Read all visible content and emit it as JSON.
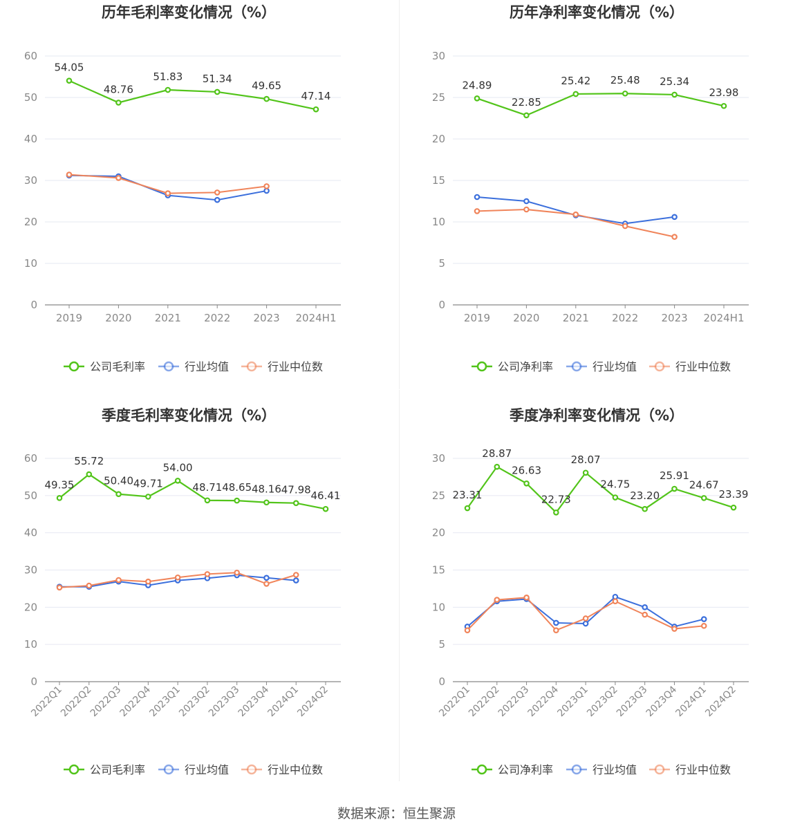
{
  "source_text": "数据来源：恒生聚源",
  "colors": {
    "company": "#52c41a",
    "industry_avg": "#3b6fdc",
    "industry_median": "#f0845a",
    "grid": "#e6e8f2",
    "axis": "#888888",
    "tick_text": "#888888",
    "title": "#333333",
    "label": "#333333"
  },
  "chart_data": [
    {
      "type": "line",
      "title": "历年毛利率变化情况（%）",
      "categories": [
        "2019",
        "2020",
        "2021",
        "2022",
        "2023",
        "2024H1"
      ],
      "ylim": [
        0,
        60
      ],
      "yticks": [
        0,
        10,
        20,
        30,
        40,
        50,
        60
      ],
      "grid": true,
      "legend_position": "bottom",
      "series": [
        {
          "name": "公司毛利率",
          "role": "company",
          "values": [
            54.05,
            48.76,
            51.83,
            51.34,
            49.65,
            47.14
          ],
          "labels": [
            "54.05",
            "48.76",
            "51.83",
            "51.34",
            "49.65",
            "47.14"
          ]
        },
        {
          "name": "行业均值",
          "role": "industry_avg",
          "values": [
            31.2,
            31.0,
            26.4,
            25.3,
            27.5,
            null
          ]
        },
        {
          "name": "行业中位数",
          "role": "industry_median",
          "values": [
            31.4,
            30.6,
            26.9,
            27.1,
            28.6,
            null
          ]
        }
      ]
    },
    {
      "type": "line",
      "title": "历年净利率变化情况（%）",
      "categories": [
        "2019",
        "2020",
        "2021",
        "2022",
        "2023",
        "2024H1"
      ],
      "ylim": [
        0,
        30
      ],
      "yticks": [
        0,
        5,
        10,
        15,
        20,
        25,
        30
      ],
      "grid": true,
      "legend_position": "bottom",
      "series": [
        {
          "name": "公司净利率",
          "role": "company",
          "values": [
            24.89,
            22.85,
            25.42,
            25.48,
            25.34,
            23.98
          ],
          "labels": [
            "24.89",
            "22.85",
            "25.42",
            "25.48",
            "25.34",
            "23.98"
          ]
        },
        {
          "name": "行业均值",
          "role": "industry_avg",
          "values": [
            13.0,
            12.5,
            10.8,
            9.8,
            10.6,
            null
          ]
        },
        {
          "name": "行业中位数",
          "role": "industry_median",
          "values": [
            11.3,
            11.5,
            10.9,
            9.5,
            8.2,
            null
          ]
        }
      ]
    },
    {
      "type": "line",
      "title": "季度毛利率变化情况（%）",
      "categories": [
        "2022Q1",
        "2022Q2",
        "2022Q3",
        "2022Q4",
        "2023Q1",
        "2023Q2",
        "2023Q3",
        "2023Q4",
        "2024Q1",
        "2024Q2"
      ],
      "ylim": [
        0,
        60
      ],
      "yticks": [
        0,
        10,
        20,
        30,
        40,
        50,
        60
      ],
      "grid": true,
      "legend_position": "bottom",
      "series": [
        {
          "name": "公司毛利率",
          "role": "company",
          "values": [
            49.35,
            55.72,
            50.4,
            49.71,
            54.0,
            48.71,
            48.65,
            48.16,
            47.98,
            46.41
          ],
          "labels": [
            "49.35",
            "55.72",
            "50.40",
            "49.71",
            "54.00",
            "48.71",
            "48.65",
            "48.16",
            "47.98",
            "46.41"
          ]
        },
        {
          "name": "行业均值",
          "role": "industry_avg",
          "values": [
            25.5,
            25.5,
            26.9,
            25.9,
            27.2,
            27.8,
            28.6,
            27.9,
            27.2,
            null
          ]
        },
        {
          "name": "行业中位数",
          "role": "industry_median",
          "values": [
            25.3,
            25.8,
            27.3,
            26.9,
            28.0,
            28.9,
            29.3,
            26.3,
            28.7,
            null
          ]
        }
      ]
    },
    {
      "type": "line",
      "title": "季度净利率变化情况（%）",
      "categories": [
        "2022Q1",
        "2022Q2",
        "2022Q3",
        "2022Q4",
        "2023Q1",
        "2023Q2",
        "2023Q3",
        "2023Q4",
        "2024Q1",
        "2024Q2"
      ],
      "ylim": [
        0,
        30
      ],
      "yticks": [
        0,
        5,
        10,
        15,
        20,
        25,
        30
      ],
      "grid": true,
      "legend_position": "bottom",
      "series": [
        {
          "name": "公司净利率",
          "role": "company",
          "values": [
            23.31,
            28.87,
            26.63,
            22.73,
            28.07,
            24.75,
            23.2,
            25.91,
            24.67,
            23.39
          ],
          "labels": [
            "23.31",
            "28.87",
            "26.63",
            "22.73",
            "28.07",
            "24.75",
            "23.20",
            "25.91",
            "24.67",
            "23.39"
          ]
        },
        {
          "name": "行业均值",
          "role": "industry_avg",
          "values": [
            7.4,
            10.8,
            11.1,
            7.9,
            7.8,
            11.4,
            10.0,
            7.4,
            8.4,
            null
          ]
        },
        {
          "name": "行业中位数",
          "role": "industry_median",
          "values": [
            6.9,
            11.0,
            11.3,
            6.9,
            8.5,
            10.8,
            9.0,
            7.1,
            7.5,
            null
          ]
        }
      ]
    }
  ]
}
